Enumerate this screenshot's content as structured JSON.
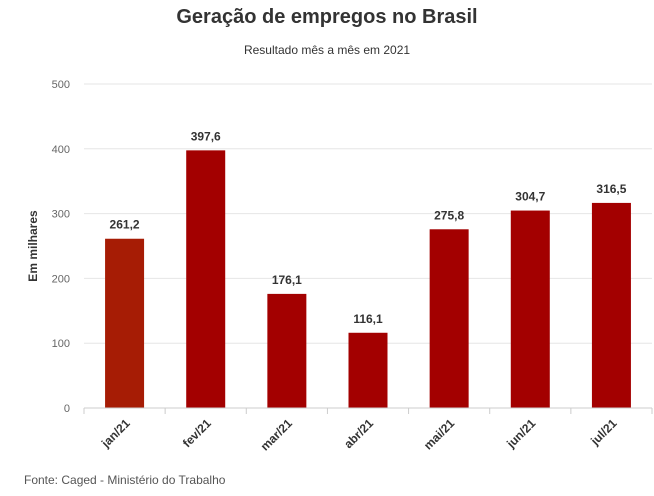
{
  "chart_data": {
    "type": "bar",
    "title": "Geração de empregos no Brasil",
    "subtitle": "Resultado mês a mês em 2021",
    "xlabel": "",
    "ylabel": "Em milhares",
    "categories": [
      "jan/21",
      "fev/21",
      "mar/21",
      "abr/21",
      "mai/21",
      "jun/21",
      "jul/21"
    ],
    "values": [
      261.2,
      397.6,
      176.1,
      116.1,
      275.8,
      304.7,
      316.5
    ],
    "data_labels": [
      "261,2",
      "397,6",
      "176,1",
      "116,1",
      "275,8",
      "304,7",
      "316,5"
    ],
    "ylim": [
      0,
      500
    ],
    "yticks": [
      0,
      100,
      200,
      300,
      400,
      500
    ],
    "grid": true,
    "legend": "none",
    "bar_color": "#a30000",
    "bar_color_first": "#a61c05"
  },
  "footer": "Fonte: Caged - Ministério do Trabalho"
}
